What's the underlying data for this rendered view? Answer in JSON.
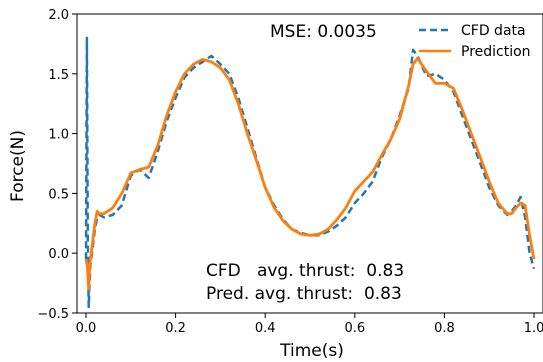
{
  "chart_data": {
    "type": "line",
    "xlabel": "Time(s)",
    "ylabel": "Force(N)",
    "xlim": [
      -0.02,
      1.02
    ],
    "ylim": [
      -0.5,
      2.0
    ],
    "xticks": [
      "0.0",
      "0.2",
      "0.4",
      "0.6",
      "0.8",
      "1.0"
    ],
    "yticks": [
      "−0.5",
      "0.0",
      "0.5",
      "1.0",
      "1.5",
      "2.0"
    ],
    "grid": false,
    "legend_position": "top-right",
    "annotations": {
      "mse": "MSE: 0.0035",
      "cfd_thrust": "CFD   avg. thrust:  0.83",
      "pred_thrust": "Pred. avg. thrust:  0.83"
    },
    "series": [
      {
        "name": "CFD data",
        "color": "#1f77b4",
        "style": "dashed",
        "x": [
          0.0,
          0.002,
          0.004,
          0.006,
          0.008,
          0.01,
          0.015,
          0.02,
          0.025,
          0.03,
          0.04,
          0.06,
          0.08,
          0.1,
          0.12,
          0.14,
          0.16,
          0.18,
          0.2,
          0.22,
          0.24,
          0.26,
          0.28,
          0.3,
          0.32,
          0.34,
          0.36,
          0.38,
          0.4,
          0.42,
          0.44,
          0.46,
          0.48,
          0.5,
          0.52,
          0.54,
          0.56,
          0.58,
          0.6,
          0.62,
          0.64,
          0.66,
          0.68,
          0.7,
          0.72,
          0.73,
          0.74,
          0.76,
          0.78,
          0.8,
          0.82,
          0.84,
          0.86,
          0.88,
          0.9,
          0.92,
          0.94,
          0.95,
          0.96,
          0.97,
          0.98,
          0.99,
          1.0
        ],
        "y": [
          -0.05,
          1.8,
          0.1,
          -0.45,
          -0.25,
          -0.1,
          0.05,
          0.2,
          0.3,
          0.32,
          0.3,
          0.32,
          0.4,
          0.65,
          0.7,
          0.63,
          0.85,
          1.1,
          1.3,
          1.47,
          1.55,
          1.6,
          1.65,
          1.58,
          1.5,
          1.3,
          1.05,
          0.8,
          0.55,
          0.4,
          0.28,
          0.2,
          0.17,
          0.15,
          0.15,
          0.18,
          0.23,
          0.3,
          0.42,
          0.5,
          0.6,
          0.8,
          0.95,
          1.15,
          1.38,
          1.7,
          1.65,
          1.48,
          1.5,
          1.45,
          1.35,
          1.15,
          0.95,
          0.75,
          0.55,
          0.4,
          0.32,
          0.35,
          0.4,
          0.47,
          0.3,
          0.0,
          -0.13
        ]
      },
      {
        "name": "Prediction",
        "color": "#ff7f0e",
        "style": "solid",
        "x": [
          0.0,
          0.003,
          0.006,
          0.008,
          0.01,
          0.015,
          0.02,
          0.025,
          0.03,
          0.04,
          0.06,
          0.08,
          0.1,
          0.12,
          0.14,
          0.16,
          0.18,
          0.2,
          0.22,
          0.24,
          0.26,
          0.28,
          0.3,
          0.32,
          0.34,
          0.36,
          0.38,
          0.4,
          0.42,
          0.44,
          0.46,
          0.48,
          0.5,
          0.52,
          0.54,
          0.56,
          0.58,
          0.6,
          0.62,
          0.64,
          0.66,
          0.68,
          0.7,
          0.72,
          0.73,
          0.74,
          0.76,
          0.78,
          0.8,
          0.82,
          0.84,
          0.86,
          0.88,
          0.9,
          0.92,
          0.94,
          0.95,
          0.96,
          0.97,
          0.98,
          0.99,
          1.0
        ],
        "y": [
          -0.05,
          -0.1,
          -0.3,
          -0.15,
          -0.05,
          0.1,
          0.25,
          0.35,
          0.33,
          0.33,
          0.38,
          0.5,
          0.67,
          0.7,
          0.72,
          0.9,
          1.15,
          1.35,
          1.5,
          1.58,
          1.62,
          1.6,
          1.55,
          1.45,
          1.25,
          1.0,
          0.78,
          0.55,
          0.38,
          0.27,
          0.2,
          0.16,
          0.15,
          0.16,
          0.2,
          0.28,
          0.38,
          0.52,
          0.6,
          0.68,
          0.82,
          0.95,
          1.12,
          1.4,
          1.58,
          1.63,
          1.52,
          1.42,
          1.42,
          1.38,
          1.2,
          1.0,
          0.8,
          0.6,
          0.42,
          0.33,
          0.33,
          0.38,
          0.42,
          0.4,
          0.15,
          -0.05
        ]
      }
    ]
  }
}
